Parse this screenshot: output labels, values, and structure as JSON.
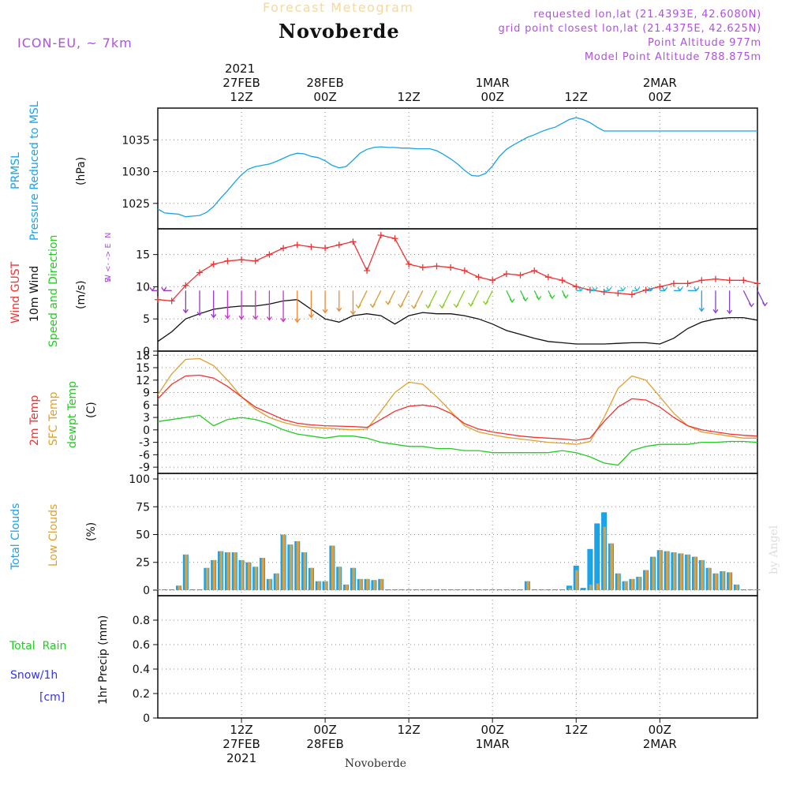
{
  "header": {
    "title_faded": "Forecast Meteogram",
    "location": "Novoberde",
    "model": "ICON-EU, ~ 7km",
    "requested": "requested lon,lat (21.4393E, 42.6080N)",
    "grid_point": "grid point closest lon,lat (21.4375E, 42.625N)",
    "point_altitude": "Point Altitude 977m",
    "model_altitude": "Model Point Altitude 788.875m"
  },
  "colors": {
    "prmsl": "#1aa3e8",
    "gust": "#ee3333",
    "wind": "#111111",
    "temp2m": "#ee3333",
    "sfc": "#e0a030",
    "dewpt": "#22cc22",
    "total_clouds": "#1aa3e8",
    "low_clouds": "#dda040",
    "rain": "#22cc22",
    "snow": "#3333ee",
    "purple": "#b050e0"
  },
  "time_axis": {
    "top_year": "2021",
    "top_labels": [
      {
        "t": 12,
        "l1": "27FEB",
        "l2": "12Z"
      },
      {
        "t": 24,
        "l1": "28FEB",
        "l2": "00Z"
      },
      {
        "t": 36,
        "l1": "",
        "l2": "12Z"
      },
      {
        "t": 48,
        "l1": "1MAR",
        "l2": "00Z"
      },
      {
        "t": 60,
        "l1": "",
        "l2": "12Z"
      },
      {
        "t": 72,
        "l1": "2MAR",
        "l2": "00Z"
      }
    ],
    "bottom_labels": [
      {
        "t": 12,
        "l1": "12Z",
        "l2": "27FEB",
        "l3": "2021"
      },
      {
        "t": 24,
        "l1": "00Z",
        "l2": "28FEB",
        "l3": ""
      },
      {
        "t": 36,
        "l1": "12Z",
        "l2": "",
        "l3": ""
      },
      {
        "t": 48,
        "l1": "00Z",
        "l2": "1MAR",
        "l3": ""
      },
      {
        "t": 60,
        "l1": "12Z",
        "l2": "",
        "l3": ""
      },
      {
        "t": 72,
        "l1": "00Z",
        "l2": "2MAR",
        "l3": ""
      }
    ],
    "bottom_location": "Novoberde"
  },
  "side_labels": {
    "prmsl": [
      "PRMSL",
      "Pressure Reduced to MSL"
    ],
    "prmsl_unit": "(hPa)",
    "wind": [
      "Wind GUST",
      "10m Wind",
      "Speed and Direction"
    ],
    "wind_unit": "(m/s)",
    "compass": [
      "N",
      "W <- -> E",
      "S"
    ],
    "temp": [
      "2m Temp",
      "SFC Temp",
      "dewpt Temp"
    ],
    "temp_unit": "(C)",
    "clouds": [
      "Total Clouds",
      "Low Clouds"
    ],
    "clouds_unit": "(%)",
    "precip": [
      "Total  Rain",
      "Snow/1h",
      "[cm]"
    ],
    "precip_unit": "1hr Precip (mm)",
    "watermark": "by Angel"
  },
  "chart_data": [
    {
      "type": "line",
      "name": "prmsl",
      "title": "PRMSL Pressure Reduced to MSL",
      "ylabel": "(hPa)",
      "ylim": [
        1021,
        1040
      ],
      "yticks": [
        1025,
        1030,
        1035
      ],
      "x": [
        0,
        1,
        2,
        3,
        4,
        5,
        6,
        7,
        8,
        9,
        10,
        11,
        12,
        13,
        14,
        15,
        16,
        17,
        18,
        19,
        20,
        21,
        22,
        23,
        24,
        25,
        26,
        27,
        28,
        29,
        30,
        31,
        32,
        33,
        34,
        35,
        36,
        37,
        38,
        39,
        40,
        41,
        42,
        43,
        44,
        45,
        46,
        47,
        48,
        49,
        50,
        51,
        52,
        53,
        54,
        55,
        56,
        57,
        58,
        59,
        60,
        61,
        62,
        63,
        64,
        65,
        66,
        67,
        68,
        69,
        70,
        71,
        72,
        73,
        74,
        75,
        76,
        77,
        78,
        79,
        80,
        81,
        82,
        83,
        84,
        85,
        86
      ],
      "values": [
        1024.1,
        1023.5,
        1023.4,
        1023.3,
        1022.9,
        1023.0,
        1023.1,
        1023.6,
        1024.5,
        1025.8,
        1027.0,
        1028.3,
        1029.5,
        1030.4,
        1030.8,
        1031.0,
        1031.2,
        1031.6,
        1032.1,
        1032.6,
        1032.9,
        1032.8,
        1032.4,
        1032.2,
        1031.7,
        1031.0,
        1030.6,
        1030.8,
        1031.8,
        1032.9,
        1033.5,
        1033.8,
        1033.9,
        1033.8,
        1033.8,
        1033.7,
        1033.7,
        1033.6,
        1033.6,
        1033.6,
        1033.3,
        1032.7,
        1032.0,
        1031.2,
        1030.2,
        1029.4,
        1029.3,
        1029.7,
        1030.9,
        1032.4,
        1033.5,
        1034.2,
        1034.8,
        1035.4,
        1035.8,
        1036.3,
        1036.7,
        1037.0,
        1037.6,
        1038.2,
        1038.5,
        1038.2,
        1037.7,
        1037.0,
        1036.4,
        1036.4,
        1036.4,
        1036.4,
        1036.4,
        1036.4,
        1036.4,
        1036.4,
        1036.4,
        1036.4,
        1036.4,
        1036.4,
        1036.4,
        1036.4,
        1036.4,
        1036.4,
        1036.4,
        1036.4,
        1036.4,
        1036.4,
        1036.4,
        1036.4,
        1036.4
      ]
    },
    {
      "type": "line",
      "name": "wind",
      "title": "Wind GUST / 10m Wind Speed and Direction",
      "ylabel": "(m/s)",
      "ylim": [
        0,
        19
      ],
      "yticks": [
        0,
        5,
        10,
        15
      ],
      "x": [
        0,
        2,
        4,
        6,
        8,
        10,
        12,
        14,
        16,
        18,
        20,
        22,
        24,
        26,
        28,
        30,
        32,
        34,
        36,
        38,
        40,
        42,
        44,
        46,
        48,
        50,
        52,
        54,
        56,
        58,
        60,
        62,
        64,
        66,
        68,
        70,
        72,
        74,
        76,
        78,
        80,
        82,
        84,
        86
      ],
      "series": [
        {
          "name": "Wind GUST",
          "values": [
            8.0,
            7.8,
            10.2,
            12.2,
            13.5,
            14.0,
            14.2,
            14.0,
            15.0,
            16.0,
            16.5,
            16.2,
            16.0,
            16.5,
            17.0,
            12.5,
            18.0,
            17.5,
            13.5,
            13.0,
            13.2,
            13.0,
            12.5,
            11.5,
            11.0,
            12.0,
            11.8,
            12.5,
            11.5,
            11.0,
            10.0,
            9.5,
            9.2,
            9.0,
            8.8,
            9.5,
            10.0,
            10.5,
            10.5,
            11.0,
            11.2,
            11.0,
            11.0,
            10.5
          ]
        },
        {
          "name": "10m Wind",
          "values": [
            1.5,
            3.0,
            5.0,
            5.8,
            6.5,
            6.8,
            7.0,
            7.0,
            7.3,
            7.8,
            8.0,
            6.5,
            5.0,
            4.5,
            5.5,
            5.8,
            5.5,
            4.2,
            5.5,
            6.0,
            5.8,
            5.8,
            5.5,
            5.0,
            4.2,
            3.2,
            2.6,
            2.0,
            1.5,
            1.3,
            1.1,
            1.1,
            1.1,
            1.2,
            1.3,
            1.3,
            1.1,
            2.0,
            3.5,
            4.5,
            5.0,
            5.2,
            5.2,
            4.8
          ]
        }
      ],
      "direction": [
        "W",
        "W",
        "S",
        "S",
        "S",
        "S",
        "S",
        "S",
        "S",
        "S",
        "S",
        "S",
        "S",
        "S",
        "S",
        "SW",
        "SW",
        "SW",
        "SW",
        "SW",
        "SW",
        "SW",
        "SW",
        "SW",
        "SW",
        "SE",
        "SE",
        "SE",
        "SE",
        "SE",
        "E",
        "E",
        "E",
        "E",
        "E",
        "E",
        "E",
        "E",
        "E",
        "S",
        "S",
        "S",
        "SE",
        "SE"
      ]
    },
    {
      "type": "line",
      "name": "temperature",
      "title": "2m Temp / SFC Temp / dewpt Temp",
      "ylabel": "(C)",
      "ylim": [
        -10.5,
        19
      ],
      "yticks": [
        18,
        15,
        12,
        9,
        6,
        3,
        0,
        -3,
        -6,
        -9
      ],
      "x": [
        0,
        2,
        4,
        6,
        8,
        10,
        12,
        14,
        16,
        18,
        20,
        22,
        24,
        26,
        28,
        30,
        32,
        34,
        36,
        38,
        40,
        42,
        44,
        46,
        48,
        50,
        52,
        54,
        56,
        58,
        60,
        62,
        64,
        66,
        68,
        70,
        72,
        74,
        76,
        78,
        80,
        82,
        84,
        86
      ],
      "series": [
        {
          "name": "2m Temp",
          "values": [
            7.5,
            11.0,
            13.0,
            13.2,
            12.5,
            10.5,
            8.0,
            5.5,
            4.0,
            2.5,
            1.6,
            1.2,
            1.0,
            0.9,
            0.8,
            0.6,
            2.5,
            4.5,
            5.7,
            6.0,
            5.5,
            4.0,
            1.5,
            0.2,
            -0.5,
            -1.0,
            -1.5,
            -1.8,
            -2.0,
            -2.2,
            -2.5,
            -2.0,
            2.0,
            5.5,
            7.5,
            7.2,
            5.5,
            3.0,
            1.0,
            0.0,
            -0.5,
            -1.0,
            -1.3,
            -1.5
          ]
        },
        {
          "name": "SFC Temp",
          "values": [
            8.5,
            13.5,
            17.0,
            17.2,
            15.5,
            12.0,
            8.0,
            5.0,
            3.0,
            1.8,
            1.0,
            0.6,
            0.4,
            0.2,
            0.0,
            0.2,
            4.5,
            9.0,
            11.5,
            11.0,
            8.0,
            4.5,
            1.0,
            -0.5,
            -1.2,
            -1.8,
            -2.2,
            -2.6,
            -3.0,
            -3.2,
            -3.5,
            -2.8,
            3.0,
            10.0,
            13.0,
            12.0,
            8.0,
            4.0,
            1.0,
            -0.5,
            -1.0,
            -1.5,
            -2.0,
            -2.0
          ]
        },
        {
          "name": "dewpt Temp",
          "values": [
            2.0,
            2.5,
            3.0,
            3.5,
            1.0,
            2.5,
            3.0,
            2.5,
            1.5,
            0.0,
            -1.0,
            -1.5,
            -2.0,
            -1.5,
            -1.5,
            -2.0,
            -3.0,
            -3.5,
            -4.0,
            -4.0,
            -4.5,
            -4.5,
            -5.0,
            -5.0,
            -5.5,
            -5.5,
            -5.5,
            -5.5,
            -5.5,
            -5.0,
            -5.5,
            -6.5,
            -8.0,
            -8.5,
            -5.0,
            -4.0,
            -3.5,
            -3.5,
            -3.5,
            -3.0,
            -3.0,
            -2.8,
            -2.8,
            -3.0
          ]
        }
      ]
    },
    {
      "type": "bar",
      "name": "clouds",
      "title": "Total Clouds / Low Clouds",
      "ylabel": "(%)",
      "ylim": [
        -5,
        105
      ],
      "yticks": [
        0,
        25,
        50,
        75,
        100
      ],
      "x": [
        0,
        1,
        2,
        3,
        4,
        5,
        6,
        7,
        8,
        9,
        10,
        11,
        12,
        13,
        14,
        15,
        16,
        17,
        18,
        19,
        20,
        21,
        22,
        23,
        24,
        25,
        26,
        27,
        28,
        29,
        30,
        31,
        32,
        33,
        34,
        35,
        36,
        37,
        38,
        39,
        40,
        41,
        42,
        43,
        44,
        45,
        46,
        47,
        48,
        49,
        50,
        51,
        52,
        53,
        54,
        55,
        56,
        57,
        58,
        59,
        60,
        61,
        62,
        63,
        64,
        65,
        66,
        67,
        68,
        69,
        70,
        71,
        72,
        73,
        74,
        75,
        76,
        77,
        78,
        79,
        80,
        81,
        82,
        83,
        84,
        85,
        86
      ],
      "series": [
        {
          "name": "Total Clouds",
          "values": [
            0,
            0,
            0,
            4,
            32,
            0,
            0,
            20,
            27,
            35,
            34,
            34,
            27,
            25,
            21,
            29,
            10,
            15,
            50,
            41,
            44,
            34,
            20,
            8,
            8,
            40,
            21,
            5,
            20,
            10,
            10,
            9,
            10,
            0,
            0,
            0,
            0,
            0,
            0,
            0,
            0,
            0,
            0,
            0,
            0,
            0,
            0,
            0,
            0,
            0,
            0,
            0,
            0,
            8,
            0,
            0,
            0,
            0,
            0,
            4,
            22,
            2,
            37,
            60,
            70,
            42,
            15,
            8,
            10,
            12,
            18,
            30,
            36,
            35,
            34,
            33,
            32,
            30,
            27,
            20,
            15,
            17,
            16,
            5,
            0,
            0,
            0
          ]
        },
        {
          "name": "Low Clouds",
          "values": [
            0,
            0,
            0,
            4,
            32,
            0,
            0,
            20,
            27,
            35,
            34,
            34,
            27,
            25,
            21,
            29,
            10,
            15,
            50,
            41,
            44,
            34,
            20,
            8,
            8,
            40,
            21,
            5,
            20,
            10,
            10,
            9,
            10,
            0,
            0,
            0,
            0,
            0,
            0,
            0,
            0,
            0,
            0,
            0,
            0,
            0,
            0,
            0,
            0,
            0,
            0,
            0,
            0,
            8,
            0,
            0,
            0,
            0,
            0,
            2,
            18,
            0,
            5,
            6,
            57,
            42,
            15,
            8,
            10,
            12,
            18,
            30,
            36,
            35,
            34,
            33,
            32,
            30,
            27,
            20,
            15,
            17,
            16,
            5,
            0,
            0,
            0
          ]
        }
      ]
    },
    {
      "type": "bar",
      "name": "precipitation",
      "title": "1hr Precip",
      "ylabel": "1hr Precip (mm)",
      "ylim": [
        0,
        1.0
      ],
      "yticks": [
        0,
        0.2,
        0.4,
        0.6,
        0.8
      ],
      "series": [
        {
          "name": "Total Rain",
          "values": []
        },
        {
          "name": "Snow/1h",
          "values": []
        }
      ]
    }
  ]
}
